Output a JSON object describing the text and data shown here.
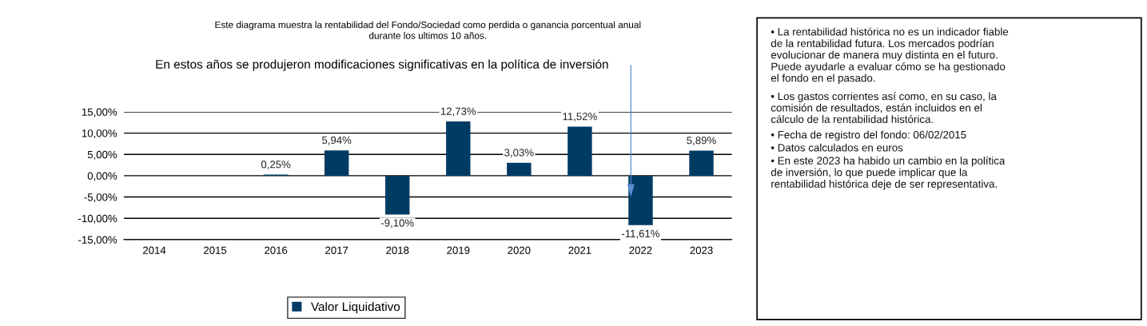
{
  "chart_data": {
    "type": "bar",
    "title": "En estos años se produjeron modificaciones significativas en la política de inversión",
    "subtitle": "Este diagrama muestra la rentabilidad del Fondo/Sociedad como perdida o ganancia porcentual anual\ndurante los ultimos 10 años.",
    "categories": [
      "2014",
      "2015",
      "2016",
      "2017",
      "2018",
      "2019",
      "2020",
      "2021",
      "2022",
      "2023"
    ],
    "series": [
      {
        "name": "Valor Liquidativo",
        "color": "#003b64",
        "values": [
          null,
          null,
          0.25,
          5.94,
          -9.1,
          12.73,
          3.03,
          11.52,
          -11.61,
          5.89
        ],
        "value_labels": [
          null,
          null,
          "0,25%",
          "5,94%",
          "-9,10%",
          "12,73%",
          "3,03%",
          "11,52%",
          "-11,61%",
          "5,89%"
        ]
      }
    ],
    "ylim": [
      -15,
      15
    ],
    "yticks": [
      {
        "value": -15,
        "label": "-15,00%"
      },
      {
        "value": -10,
        "label": "-10,00%"
      },
      {
        "value": -5,
        "label": "-5,00%"
      },
      {
        "value": 0,
        "label": "0,00%"
      },
      {
        "value": 5,
        "label": "5,00%"
      },
      {
        "value": 10,
        "label": "10,00%"
      },
      {
        "value": 15,
        "label": "15,00%"
      }
    ],
    "grid": "y",
    "legend": "bottom",
    "annotations": [
      "• La rentabilidad histórica no es un indicador fiable\nde la rentabilidad futura. Los mercados podrían\nevolucionar de manera muy distinta en el futuro.\nPuede ayudarle a evaluar cómo se ha gestionado\nel fondo en el pasado.",
      "• Los gastos corrientes así como, en su caso, la\ncomisión de resultados, están incluidos en el\ncálculo de la rentabilidad histórica.",
      "• Fecha de registro del fondo: 06/02/2015",
      "• Datos calculados en euros",
      "• En este 2023 ha habido un cambio en la política\nde inversión, lo que puede implicar que la\nrentabilidad histórica deje de ser representativa."
    ]
  }
}
